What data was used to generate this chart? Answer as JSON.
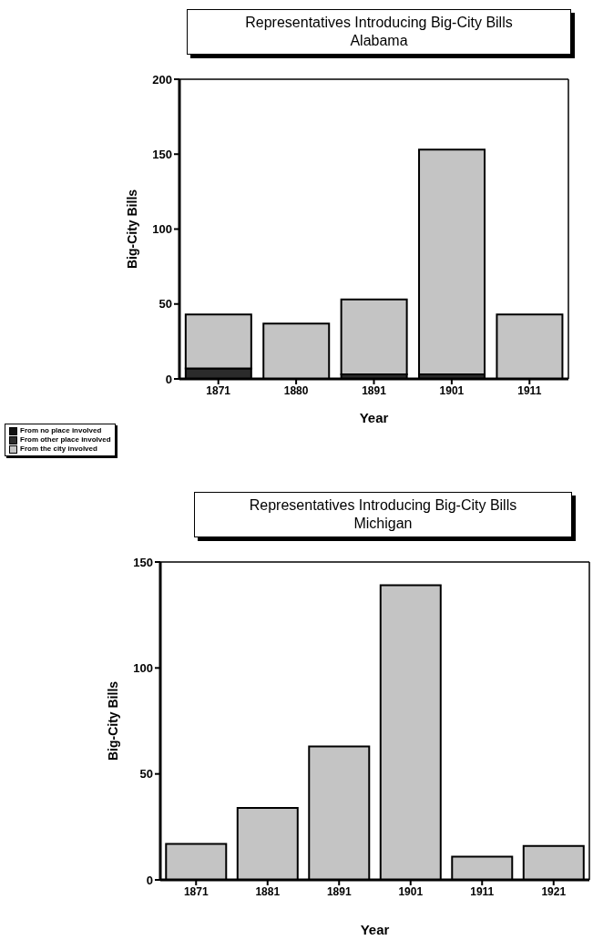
{
  "chart_data": [
    {
      "type": "bar",
      "title": "Representatives Introducing Big-City Bills",
      "subtitle": "Alabama",
      "xlabel": "Year",
      "ylabel": "Big-City Bills",
      "categories": [
        "1871",
        "1880",
        "1891",
        "1901",
        "1911"
      ],
      "stacked": true,
      "ylim": [
        0,
        200
      ],
      "yticks": [
        0,
        50,
        100,
        150,
        200
      ],
      "legend": "bottom left",
      "series": [
        {
          "name": "From no place involved",
          "color": "#111111",
          "values": [
            0,
            0,
            0,
            0,
            0
          ]
        },
        {
          "name": "From other place involved",
          "color": "#2b2b2b",
          "values": [
            7,
            0,
            3,
            3,
            null
          ]
        },
        {
          "name": "From the city involved",
          "color": "#c4c4c4",
          "values": [
            36,
            37,
            50,
            150,
            43
          ]
        }
      ]
    },
    {
      "type": "bar",
      "title": "Representatives Introducing Big-City Bills",
      "subtitle": "Michigan",
      "xlabel": "Year",
      "ylabel": "Big-City Bills",
      "categories": [
        "1871",
        "1881",
        "1891",
        "1901",
        "1911",
        "1921"
      ],
      "ylim": [
        0,
        150
      ],
      "yticks": [
        0,
        50,
        100,
        150
      ],
      "series": [
        {
          "color": "#c4c4c4",
          "values": [
            17,
            34,
            63,
            139,
            11,
            16
          ]
        }
      ]
    }
  ]
}
